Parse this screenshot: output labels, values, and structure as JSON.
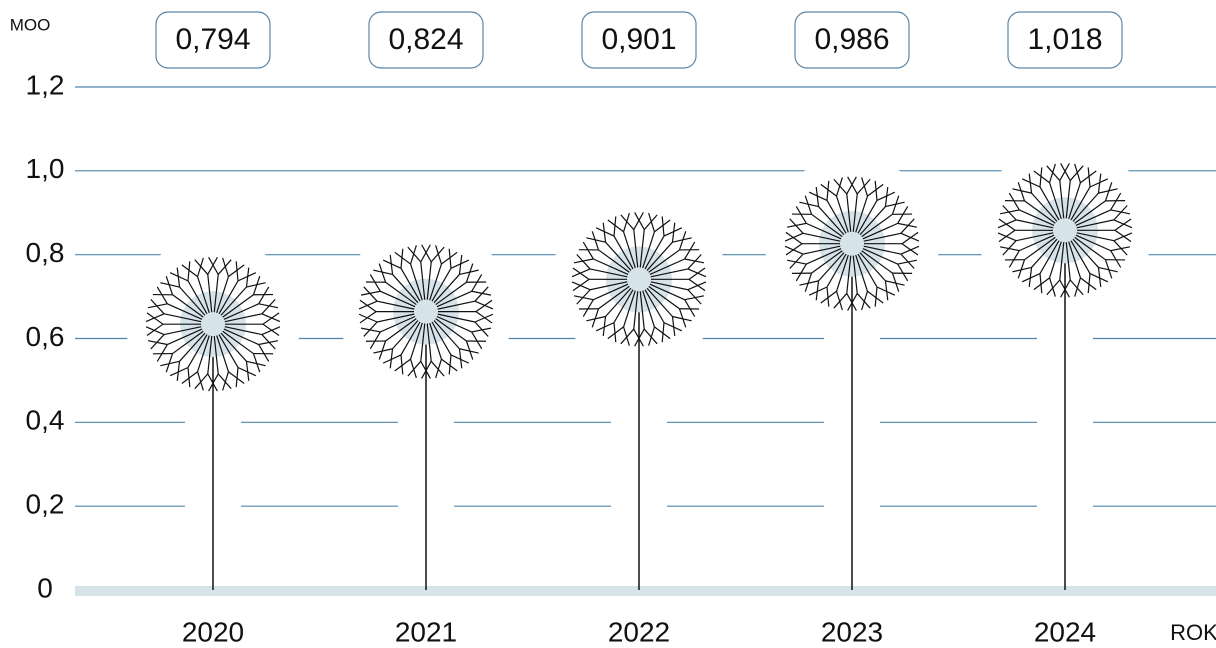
{
  "chart_data": {
    "type": "pictogram",
    "y_unit": "MOO",
    "x_label": "ROK",
    "categories": [
      "2020",
      "2021",
      "2022",
      "2023",
      "2024"
    ],
    "values": [
      0.794,
      0.824,
      0.901,
      0.986,
      1.018
    ],
    "value_labels": [
      "0,794",
      "0,824",
      "0,901",
      "0,986",
      "1,018"
    ],
    "ylim": [
      0,
      1.2
    ],
    "yticks": [
      0,
      {
        "value": 0.2,
        "label": "0,2"
      },
      {
        "value": 0.4,
        "label": "0,4"
      },
      {
        "value": 0.6,
        "label": "0,6"
      },
      {
        "value": 0.8,
        "label": "0,8"
      },
      {
        "value": 1,
        "label": "1,0"
      },
      {
        "value": 1.2,
        "label": "1,2"
      }
    ],
    "grid": true,
    "color": "#111111"
  }
}
